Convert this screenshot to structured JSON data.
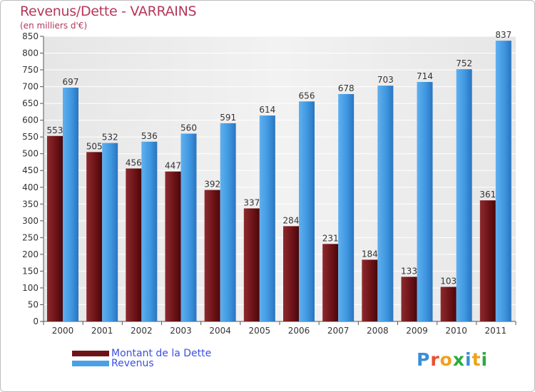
{
  "header": {
    "title": "Revenus/Dette - VARRAINS",
    "subtitle": "(en milliers d'€)"
  },
  "chart_data": {
    "type": "bar",
    "title": "Revenus/Dette - VARRAINS",
    "subtitle": "(en milliers d'€)",
    "categories": [
      "2000",
      "2001",
      "2002",
      "2003",
      "2004",
      "2005",
      "2006",
      "2007",
      "2008",
      "2009",
      "2010",
      "2011"
    ],
    "series": [
      {
        "name": "Montant de la Dette",
        "color": "#7a1a1e",
        "values": [
          553,
          505,
          456,
          447,
          392,
          337,
          284,
          231,
          184,
          133,
          103,
          361
        ]
      },
      {
        "name": "Revenus",
        "color": "#4aa0e6",
        "values": [
          697,
          532,
          536,
          560,
          591,
          614,
          656,
          678,
          703,
          714,
          752,
          837
        ]
      }
    ],
    "ylim": [
      0,
      850
    ],
    "ytick_step": 50,
    "grid": true,
    "legend": "bottom-left"
  },
  "logo": {
    "letters": [
      {
        "ch": "P",
        "color": "#3a8ed6"
      },
      {
        "ch": "r",
        "color": "#e8502c"
      },
      {
        "ch": "o",
        "color": "#f0a21c"
      },
      {
        "ch": "x",
        "color": "#2eaa3c"
      },
      {
        "ch": "i",
        "color": "#3a8ed6"
      },
      {
        "ch": "t",
        "color": "#f0a21c"
      },
      {
        "ch": "i",
        "color": "#2eaa3c"
      }
    ]
  }
}
